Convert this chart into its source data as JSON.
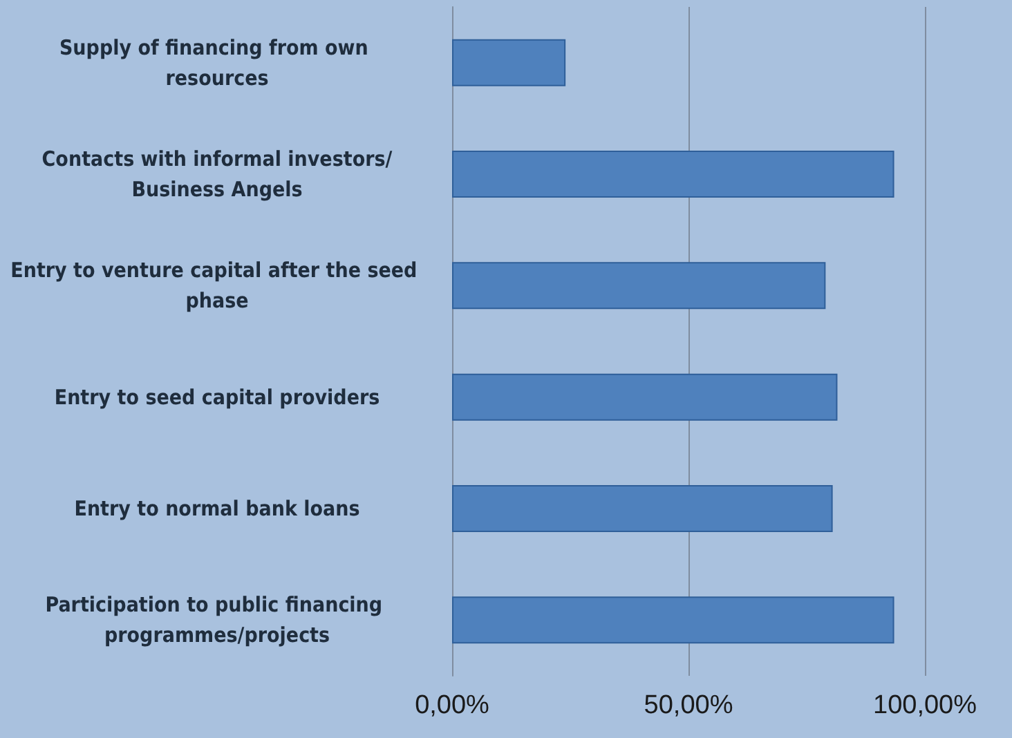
{
  "chart_data": {
    "type": "bar",
    "orientation": "horizontal",
    "categories": [
      "Supply of financing from own resources",
      "Contacts with informal investors/Business Angels",
      "Entry to venture capital after the seed phase",
      "Entry to seed capital providers",
      "Entry to normal bank loans",
      "Participation to public financing programmes/projects"
    ],
    "values": [
      24,
      93.5,
      79,
      81.5,
      80.5,
      93.5
    ],
    "color": "#4f81bd",
    "xlim": [
      0,
      100
    ],
    "xticks": [
      {
        "value": 0,
        "label": "0,00%"
      },
      {
        "value": 50,
        "label": "50,00%"
      },
      {
        "value": 100,
        "label": "100,00%"
      }
    ],
    "grid": "x"
  }
}
